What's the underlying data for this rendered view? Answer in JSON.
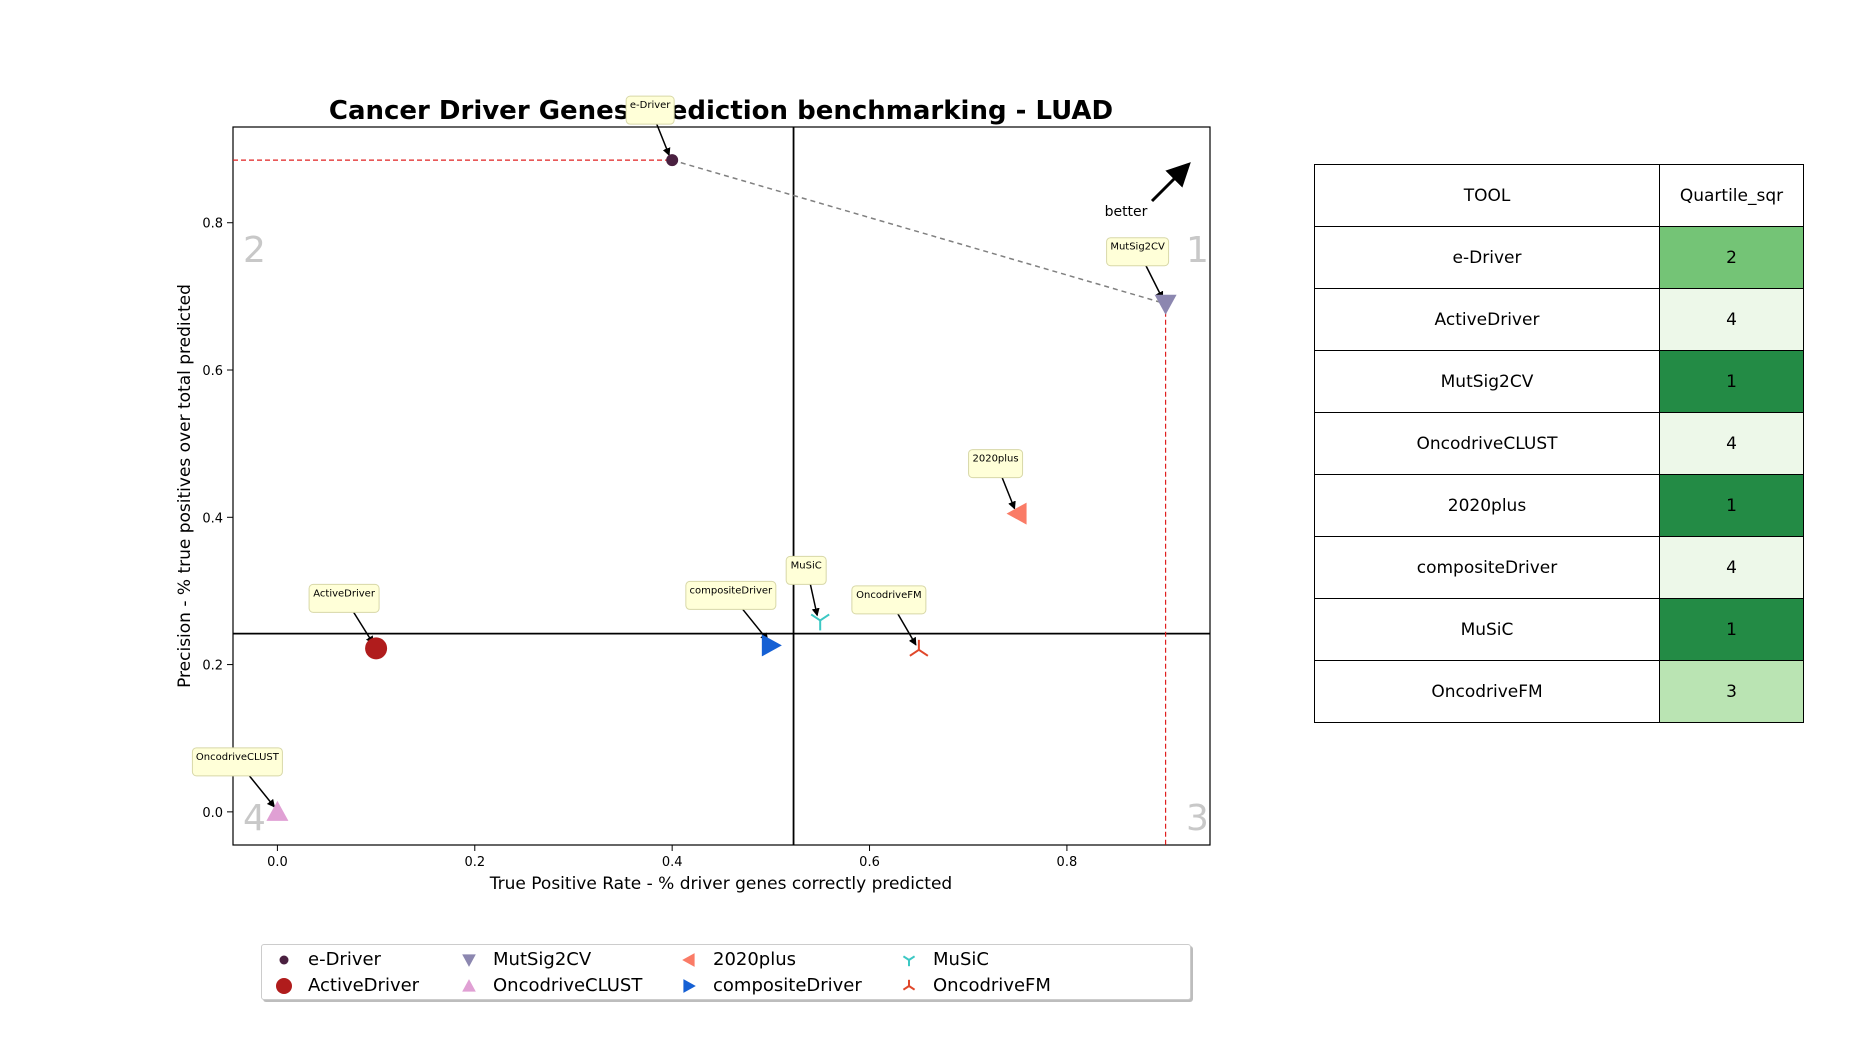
{
  "chart_data": {
    "type": "scatter",
    "title": "Cancer Driver Genes prediction benchmarking - LUAD",
    "xlabel": "True Positive Rate - % driver genes correctly predicted",
    "ylabel": "Precision - % true positives over total predicted",
    "xlim": [
      -0.045,
      0.945
    ],
    "ylim": [
      -0.045,
      0.93
    ],
    "xticks": [
      "0.0",
      "0.2",
      "0.4",
      "0.6",
      "0.8"
    ],
    "yticks": [
      "0.0",
      "0.2",
      "0.4",
      "0.6",
      "0.8"
    ],
    "grid": false,
    "legend_position": "bottom-center",
    "points": [
      {
        "name": "e-Driver",
        "x": 0.4,
        "y": 0.885,
        "marker": "circle",
        "size": "small",
        "color": "#4a2040"
      },
      {
        "name": "ActiveDriver",
        "x": 0.1,
        "y": 0.222,
        "marker": "circle",
        "size": "large",
        "color": "#b01c1c"
      },
      {
        "name": "MutSig2CV",
        "x": 0.9,
        "y": 0.69,
        "marker": "triangle-down",
        "color": "#8c87b0"
      },
      {
        "name": "OncodriveCLUST",
        "x": 0.0,
        "y": 0.0,
        "marker": "triangle-up",
        "color": "#e0a0d4"
      },
      {
        "name": "2020plus",
        "x": 0.75,
        "y": 0.405,
        "marker": "triangle-left",
        "color": "#fa7b66"
      },
      {
        "name": "compositeDriver",
        "x": 0.5,
        "y": 0.226,
        "marker": "triangle-right",
        "color": "#1560d4"
      },
      {
        "name": "MuSiC",
        "x": 0.55,
        "y": 0.26,
        "marker": "tri-down",
        "color": "#3cc8c4"
      },
      {
        "name": "OncodriveFM",
        "x": 0.65,
        "y": 0.22,
        "marker": "tri-up",
        "color": "#e0472a"
      }
    ],
    "vertical_divider_x": 0.523,
    "horizontal_divider_y": 0.242,
    "pareto_front": [
      [
        0.4,
        0.885
      ],
      [
        0.9,
        0.69
      ]
    ],
    "quadrant_labels": [
      "1",
      "2",
      "3",
      "4"
    ],
    "better_arrow_label": "better"
  },
  "table": {
    "headers": [
      "TOOL",
      "Quartile_sqr"
    ],
    "rows": [
      {
        "tool": "e-Driver",
        "quartile": "2",
        "color": "#74c476"
      },
      {
        "tool": "ActiveDriver",
        "quartile": "4",
        "color": "#edf8e9"
      },
      {
        "tool": "MutSig2CV",
        "quartile": "1",
        "color": "#238b45"
      },
      {
        "tool": "OncodriveCLUST",
        "quartile": "4",
        "color": "#edf8e9"
      },
      {
        "tool": "2020plus",
        "quartile": "1",
        "color": "#238b45"
      },
      {
        "tool": "compositeDriver",
        "quartile": "4",
        "color": "#edf8e9"
      },
      {
        "tool": "MuSiC",
        "quartile": "1",
        "color": "#238b45"
      },
      {
        "tool": "OncodriveFM",
        "quartile": "3",
        "color": "#bae4b3"
      }
    ]
  }
}
